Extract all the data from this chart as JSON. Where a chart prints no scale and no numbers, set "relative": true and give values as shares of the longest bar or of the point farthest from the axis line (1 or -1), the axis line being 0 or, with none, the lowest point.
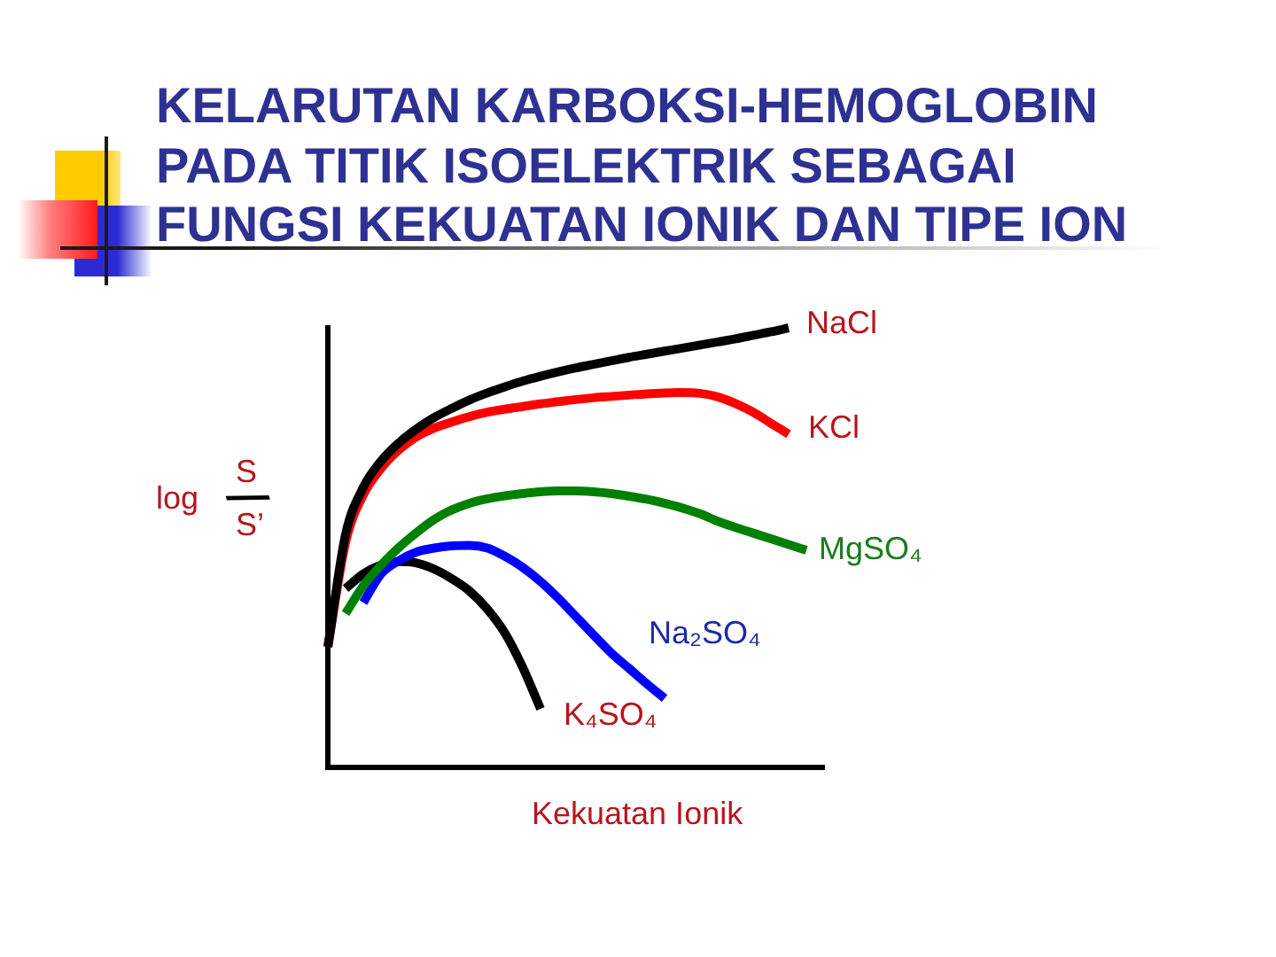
{
  "chart_data": {
    "type": "line",
    "title": "KELARUTAN KARBOKSI-HEMOGLOBIN PADA TITIK ISOELEKTRIK SEBAGAI FUNGSI KEKUATAN IONIK DAN TIPE ION",
    "xlabel": "Kekuatan Ionik",
    "ylabel": "log S/S’",
    "relative": true,
    "tick_labels": false,
    "categories": [
      null,
      null,
      null,
      null,
      null,
      null,
      null,
      null,
      null,
      null,
      null,
      null,
      null,
      null,
      null,
      null,
      null,
      null,
      null,
      null,
      null,
      null,
      null,
      null,
      null,
      null,
      null,
      null,
      null
    ],
    "series": [
      {
        "name": "NaCl",
        "color": "#000000",
        "values": [
          0.274,
          0.53,
          0.637,
          0.697,
          0.738,
          0.77,
          0.796,
          0.817,
          0.836,
          0.852,
          0.866,
          0.879,
          0.89,
          0.9,
          0.909,
          0.917,
          0.925,
          0.933,
          0.94,
          0.947,
          0.954,
          0.961,
          0.968,
          0.975,
          0.983,
          0.991,
          1,
          null,
          null
        ]
      },
      {
        "name": "KCl",
        "color": "#ff0000",
        "values": [
          0.274,
          0.512,
          0.62,
          0.68,
          0.722,
          0.752,
          0.772,
          0.786,
          0.798,
          0.808,
          0.815,
          0.821,
          0.827,
          0.832,
          0.837,
          0.841,
          0.844,
          0.847,
          0.85,
          0.852,
          0.853,
          0.851,
          0.843,
          0.828,
          0.808,
          0.783,
          0.758,
          null,
          null
        ]
      },
      {
        "name": "MgSO₄",
        "color": "#008000",
        "values": [
          null,
          0.35,
          0.413,
          0.46,
          0.5,
          0.534,
          0.564,
          0.586,
          0.601,
          0.611,
          0.618,
          0.623,
          0.627,
          0.629,
          0.629,
          0.627,
          0.623,
          0.617,
          0.61,
          0.601,
          0.59,
          0.577,
          0.56,
          0.546,
          0.533,
          0.52,
          0.507,
          0.494,
          null
        ]
      },
      {
        "name": "Na₂SO₄",
        "color": "#0000ff",
        "values": [
          null,
          null,
          0.375,
          0.44,
          0.47,
          0.49,
          0.499,
          0.504,
          0.505,
          0.499,
          0.48,
          0.455,
          0.423,
          0.385,
          0.343,
          0.301,
          0.26,
          0.225,
          0.19,
          0.157,
          null,
          null,
          null,
          null,
          null,
          null,
          null,
          null,
          null
        ]
      },
      {
        "name": "K₄SO₄",
        "color": "#000000",
        "values": [
          null,
          0.407,
          0.44,
          0.46,
          0.468,
          0.465,
          0.451,
          0.429,
          0.401,
          0.36,
          0.305,
          0.227,
          0.133,
          null,
          null,
          null,
          null,
          null,
          null,
          null,
          null,
          null,
          null,
          null,
          null,
          null,
          null,
          null,
          null
        ]
      }
    ]
  }
}
